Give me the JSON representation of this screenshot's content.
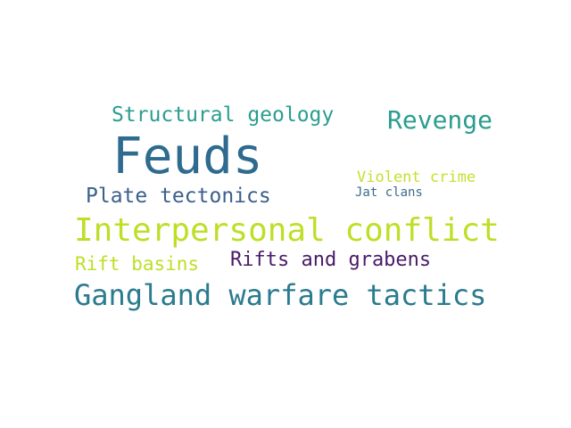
{
  "wordcloud": {
    "words": [
      {
        "text": "Feuds",
        "color": "#2e6b8e"
      },
      {
        "text": "Interpersonal conflict",
        "color": "#bddf26"
      },
      {
        "text": "Gangland warfare tactics",
        "color": "#2a7b8e"
      },
      {
        "text": "Revenge",
        "color": "#2a9d8f"
      },
      {
        "text": "Structural geology",
        "color": "#2a9d8f"
      },
      {
        "text": "Plate tectonics",
        "color": "#3b5f8c"
      },
      {
        "text": "Rifts and grabens",
        "color": "#4a1a68"
      },
      {
        "text": "Rift basins",
        "color": "#bddf26"
      },
      {
        "text": "Violent crime",
        "color": "#c6e030"
      },
      {
        "text": "Jat clans",
        "color": "#3b6b8e"
      }
    ]
  }
}
